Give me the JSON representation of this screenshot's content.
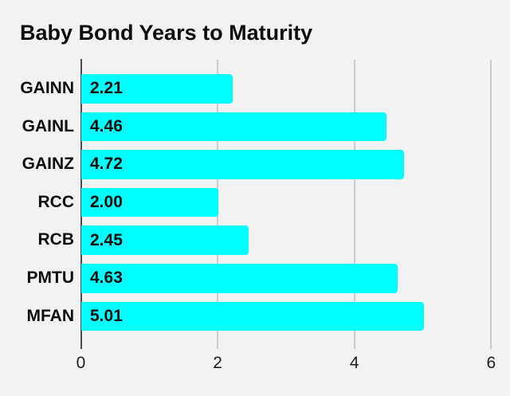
{
  "title": "Baby Bond Years to Maturity",
  "chart_data": {
    "type": "bar",
    "orientation": "horizontal",
    "title": "Baby Bond Years to Maturity",
    "categories": [
      "GAINN",
      "GAINL",
      "GAINZ",
      "RCC",
      "RCB",
      "PMTU",
      "MFAN"
    ],
    "values": [
      2.21,
      4.46,
      4.72,
      2.0,
      2.45,
      4.63,
      5.01
    ],
    "value_labels": [
      "2.21",
      "4.46",
      "4.72",
      "2.00",
      "2.45",
      "4.63",
      "5.01"
    ],
    "xlabel": "",
    "ylabel": "",
    "xlim": [
      0,
      6
    ],
    "x_ticks": [
      0,
      2,
      4,
      6
    ],
    "x_tick_labels": [
      "0",
      "2",
      "4",
      "6"
    ],
    "grid": true,
    "legend": "none",
    "bar_color": "#00ffff",
    "background_color": "#f2f2f2",
    "axis_color": "#4d4d4d",
    "gridline_color": "#cccccc",
    "label_color": "#0d0d0d"
  }
}
